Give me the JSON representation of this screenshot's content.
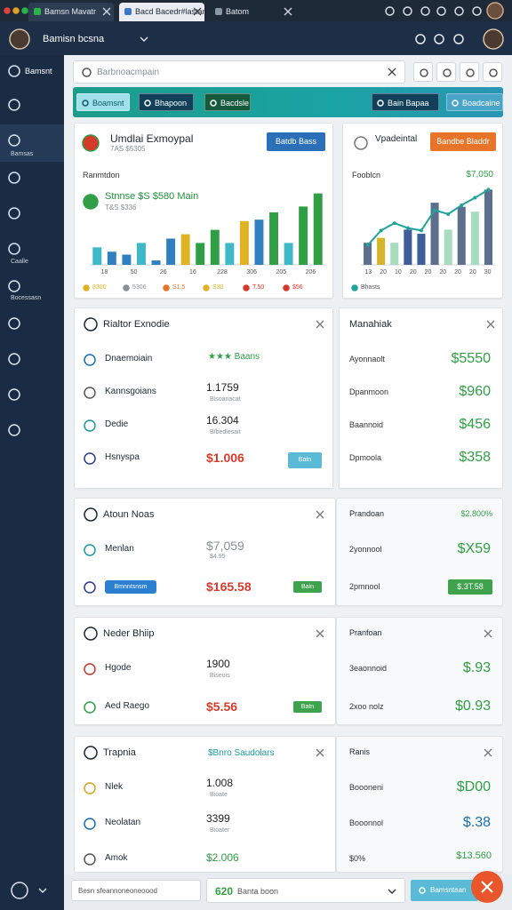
{
  "tabs": [
    "Bamsn Mavatr",
    "Bacd Bacedr#lastan",
    "Batom"
  ],
  "header": {
    "account": "Bamisn bcsna"
  },
  "sidebar": [
    "Bamsnt",
    "Bamsas",
    "Caalle",
    "Bocessasn"
  ],
  "search": {
    "placeholder": "Barbnoacmpain"
  },
  "toolbar": {
    "left": [
      "Boamsnt",
      "Bhapoon",
      "Bacdsle"
    ],
    "right": [
      "Bain Bapaa",
      "Boadcaine"
    ]
  },
  "charts": [
    {
      "type": "bar",
      "title": "Umdlai Exmoypal",
      "subtitle": "7AS $5305",
      "button": "Batdb Bass",
      "label": "Ranmtdon",
      "kpi": "Stnnse $S $580 Main",
      "kpi_sub": "T&S $336",
      "ylim": [
        0,
        100
      ],
      "values": [
        24,
        18,
        14,
        30,
        6,
        36,
        42,
        30,
        48,
        30,
        60,
        62,
        72,
        30,
        80,
        98
      ],
      "colors": [
        "#3fb8c8",
        "#2f7fc1",
        "#2f7fc1",
        "#3fb8c8",
        "#2f7fc1",
        "#2f7fc1",
        "#e0b324",
        "#2f9e44",
        "#2f9e44",
        "#3fb8c8",
        "#e0b324",
        "#2f7fc1",
        "#2f9e44",
        "#3fb8c8",
        "#2f9e44",
        "#2f9e44"
      ],
      "xlabels": [
        "18",
        "50",
        "26",
        "16",
        "228",
        "306",
        "205",
        "206"
      ],
      "legend": [
        "8300",
        "5306",
        "S1.5",
        "S30",
        "T.50",
        "$56"
      ],
      "legend_colors": [
        "#e0b324",
        "#8a8f98",
        "#e8742a",
        "#e0b324",
        "#d63a2a",
        "#d63a2a"
      ]
    },
    {
      "type": "bar",
      "title": "Vpadeintal",
      "button": "Bandbe Bladdr",
      "label": "Fooblcn",
      "kpi": "$7,050",
      "ylim": [
        0,
        100
      ],
      "values": [
        27,
        33,
        27,
        43,
        38,
        76,
        43,
        71,
        65,
        92
      ],
      "colors": [
        "#5c6f8c",
        "#d6b52a",
        "#a8dcc0",
        "#3f5d9a",
        "#3f5d9a",
        "#5c6f8c",
        "#a8dcc0",
        "#5c6f8c",
        "#a8dcc0",
        "#5c6f8c"
      ],
      "line_values": [
        24,
        42,
        51,
        45,
        42,
        67,
        62,
        73,
        82,
        92
      ],
      "line_color": "#1fa39a",
      "xlabels": [
        "13",
        "20",
        "10",
        "20",
        "20",
        "20",
        "20",
        "20",
        "30"
      ],
      "legend": [
        "Bhasts"
      ],
      "legend_colors": [
        "#1fa39a"
      ]
    }
  ],
  "panels": [
    {
      "left": {
        "title": "Rialtor Exnodie",
        "rows": [
          {
            "label": "Dnaemoiain",
            "value": "★★★ Baans",
            "tone": "green"
          },
          {
            "label": "Kannsgoians",
            "value": "1.1759",
            "sub": "Bisoanacat",
            "tone": "dark"
          },
          {
            "label": "Dedie",
            "value": "16.304",
            "sub": "B/bedlesait",
            "tone": "dark"
          },
          {
            "label": "Hsnyspa",
            "value": "$1.006",
            "tone": "red",
            "button": "Batn"
          }
        ]
      },
      "right": {
        "title": "Manahiak",
        "rows": [
          {
            "label": "Ayonnaolt",
            "value": "$5550"
          },
          {
            "label": "Dpanmoon",
            "value": "$960"
          },
          {
            "label": "Baannoid",
            "value": "$456"
          },
          {
            "label": "Dpmoola",
            "value": "$358"
          }
        ]
      }
    },
    {
      "left": {
        "title": "Atoun Noas",
        "rows": [
          {
            "label": "Menlan",
            "value": "$7,059",
            "sub": "$4.95",
            "tone": "gray"
          },
          {
            "badge": "Bmnntsnsm",
            "value": "$165.58",
            "tone": "red",
            "button": "Bain"
          }
        ]
      },
      "right": {
        "title": "Prandoan",
        "value": "$2.800%",
        "rows": [
          {
            "label": "2yonnool",
            "value": "$X59"
          },
          {
            "label": "2pmnool",
            "button": "$.3T.58"
          }
        ]
      }
    },
    {
      "left": {
        "title": "Neder Bhiip",
        "rows": [
          {
            "label": "Hgode",
            "value": "1900",
            "sub": "Biseuis",
            "tone": "dark"
          },
          {
            "label": "Aed Raego",
            "value": "$5.56",
            "tone": "red",
            "button": "Batn"
          }
        ]
      },
      "right": {
        "title": "Pranfoan",
        "rows": [
          {
            "label": "3eaonnoid",
            "value": "$.93"
          },
          {
            "label": "2xoo nolz",
            "value": "$0.93"
          }
        ]
      }
    },
    {
      "left": {
        "title": "Trapnia",
        "tag": "$Bnro Saudolars",
        "rows": [
          {
            "label": "Nlek",
            "value": "1.008",
            "sub": "Bioate",
            "tone": "dark"
          },
          {
            "label": "Neolatan",
            "value": "3399",
            "sub": "Bioater",
            "tone": "dark"
          },
          {
            "label": "Amok",
            "value": "$2.006",
            "tone": "green"
          }
        ]
      },
      "right": {
        "title": "Ranis",
        "rows": [
          {
            "label": "Boooneni",
            "value": "$D00"
          },
          {
            "label": "Booonnol",
            "value": "$.38",
            "tone": "blue"
          },
          {
            "label": "$0%",
            "value": "$13.560"
          }
        ]
      }
    }
  ],
  "footer": {
    "input": "Besn sfeannoneoneoood",
    "count": "620",
    "select": "Banta boon",
    "button": "Bamsntaan"
  }
}
